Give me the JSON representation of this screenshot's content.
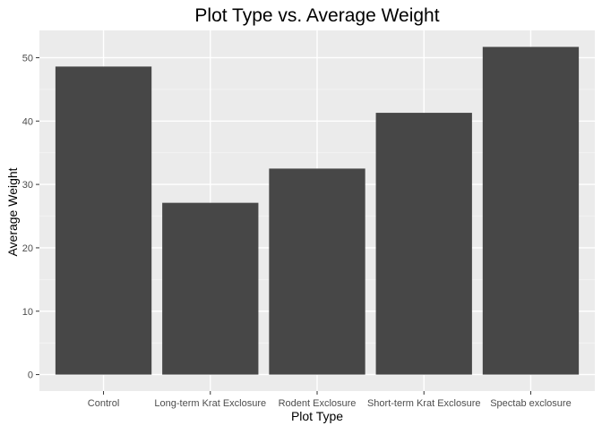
{
  "chart_data": {
    "type": "bar",
    "title": "Plot Type vs. Average Weight",
    "xlabel": "Plot Type",
    "ylabel": "Average Weight",
    "categories": [
      "Control",
      "Long-term Krat Exclosure",
      "Rodent Exclosure",
      "Short-term Krat Exclosure",
      "Spectab exclosure"
    ],
    "values": [
      48.6,
      27.1,
      32.5,
      41.3,
      51.7
    ],
    "ylim": [
      -2.6,
      54.3
    ],
    "yticks": [
      0,
      10,
      20,
      30,
      40,
      50
    ],
    "grid": true,
    "colors": {
      "bar": "#474747",
      "panel": "#ebebeb",
      "grid_major": "#ffffff",
      "grid_minor": "#f5f5f5",
      "tick_text": "#4d4d4d",
      "axis_title": "#000000"
    }
  }
}
